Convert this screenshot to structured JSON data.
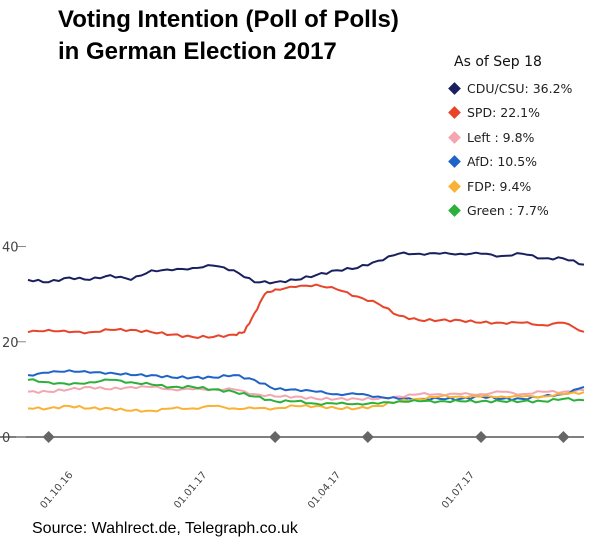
{
  "chart_data": {
    "type": "line",
    "title": "Voting Intention (Poll of Polls) in German Election 2017",
    "title_lines": [
      "Voting Intention (Poll of Polls)",
      "in German Election 2017"
    ],
    "legend_title": "As of Sep 18",
    "source": "Source: Wahlrect.de, Telegraph.co.uk",
    "xlabel": "",
    "ylabel": "",
    "ylim": [
      0,
      42
    ],
    "yticks": [
      0,
      20,
      40
    ],
    "xlim": [
      0,
      54
    ],
    "x_tick_labels": [
      {
        "x": 3,
        "label": "01.10.16"
      },
      {
        "x": 16,
        "label": "01.01.17"
      },
      {
        "x": 29,
        "label": "01.04.17"
      },
      {
        "x": 42,
        "label": "01.07.17"
      }
    ],
    "event_markers_x": [
      2,
      24,
      33,
      44,
      52
    ],
    "series": [
      {
        "name": "CDU/CSU",
        "legend": "CDU/CSU: 36.2%",
        "color": "#1a1f5e",
        "x": [
          0,
          2,
          4,
          6,
          8,
          10,
          12,
          14,
          16,
          18,
          20,
          22,
          24,
          26,
          28,
          30,
          32,
          34,
          36,
          38,
          40,
          42,
          44,
          46,
          48,
          50,
          52,
          54
        ],
        "y": [
          33,
          32.5,
          33.5,
          33,
          34,
          33,
          35,
          35,
          35.5,
          36,
          35,
          32.5,
          32.5,
          33,
          34,
          35,
          35.5,
          37,
          38.5,
          38.5,
          38.5,
          38.5,
          38.5,
          38,
          38.5,
          37.5,
          37.5,
          36.2
        ]
      },
      {
        "name": "SPD",
        "legend": "SPD: 22.1%",
        "color": "#e8442a",
        "x": [
          0,
          2,
          4,
          6,
          8,
          10,
          12,
          14,
          16,
          18,
          20,
          21,
          22,
          23,
          24,
          26,
          28,
          30,
          32,
          34,
          36,
          38,
          40,
          42,
          44,
          46,
          48,
          50,
          52,
          54
        ],
        "y": [
          22,
          22.5,
          22,
          22,
          22.5,
          22.5,
          22,
          21.5,
          21,
          21,
          21.5,
          22,
          26,
          30,
          31,
          31.5,
          32,
          31,
          29.5,
          28,
          25.5,
          24.5,
          24.5,
          24.5,
          24,
          24,
          24,
          23.5,
          24,
          22.1
        ]
      },
      {
        "name": "Left",
        "legend": "Left : 9.8%",
        "color": "#f4a6b0",
        "x": [
          0,
          2,
          4,
          6,
          8,
          10,
          12,
          14,
          16,
          18,
          20,
          22,
          24,
          26,
          28,
          30,
          32,
          34,
          36,
          38,
          40,
          42,
          44,
          46,
          48,
          50,
          52,
          54
        ],
        "y": [
          9.5,
          9.5,
          10,
          10.5,
          10,
          10.5,
          10.5,
          10,
          10,
          10,
          10,
          9,
          8.5,
          8.5,
          8,
          8,
          8,
          8,
          8.5,
          9,
          9,
          9,
          9,
          9.5,
          9,
          9.5,
          9.5,
          9.8
        ]
      },
      {
        "name": "AfD",
        "legend": "AfD: 10.5%",
        "color": "#1e63c8",
        "x": [
          0,
          2,
          4,
          6,
          8,
          10,
          12,
          14,
          16,
          18,
          20,
          22,
          24,
          26,
          28,
          30,
          32,
          34,
          36,
          38,
          40,
          42,
          44,
          46,
          48,
          50,
          52,
          54
        ],
        "y": [
          13,
          13.5,
          14,
          13.5,
          13.5,
          13,
          13,
          12.5,
          12.5,
          12.5,
          13,
          12,
          10,
          10,
          9.5,
          9,
          9,
          8.5,
          8,
          8,
          8,
          8,
          8.5,
          8,
          8,
          8.5,
          9,
          10.5
        ]
      },
      {
        "name": "FDP",
        "legend": "FDP: 9.4%",
        "color": "#f9b233",
        "x": [
          0,
          2,
          4,
          6,
          8,
          10,
          12,
          14,
          16,
          18,
          20,
          22,
          24,
          26,
          28,
          30,
          32,
          34,
          36,
          38,
          40,
          42,
          44,
          46,
          48,
          50,
          52,
          54
        ],
        "y": [
          6,
          6,
          6.5,
          6,
          6,
          5.5,
          5.5,
          6,
          6,
          6.5,
          6,
          6,
          6,
          6.5,
          6.5,
          6,
          6,
          6.5,
          7.5,
          8,
          8.5,
          8.5,
          8.5,
          8.5,
          8.5,
          8.5,
          9,
          9.4
        ]
      },
      {
        "name": "Green",
        "legend": "Green : 7.7%",
        "color": "#2bb03a",
        "x": [
          0,
          2,
          4,
          6,
          8,
          10,
          12,
          14,
          16,
          18,
          20,
          22,
          24,
          26,
          28,
          30,
          32,
          34,
          36,
          38,
          40,
          42,
          44,
          46,
          48,
          50,
          52,
          54
        ],
        "y": [
          12,
          11.5,
          11,
          11.5,
          12,
          11.5,
          11,
          10.5,
          10.5,
          10,
          9.5,
          8.5,
          7.5,
          7.5,
          7,
          7,
          7,
          7,
          7.5,
          7.5,
          7.5,
          7.5,
          7.5,
          7.5,
          7.5,
          7.5,
          8,
          7.7
        ]
      }
    ]
  }
}
